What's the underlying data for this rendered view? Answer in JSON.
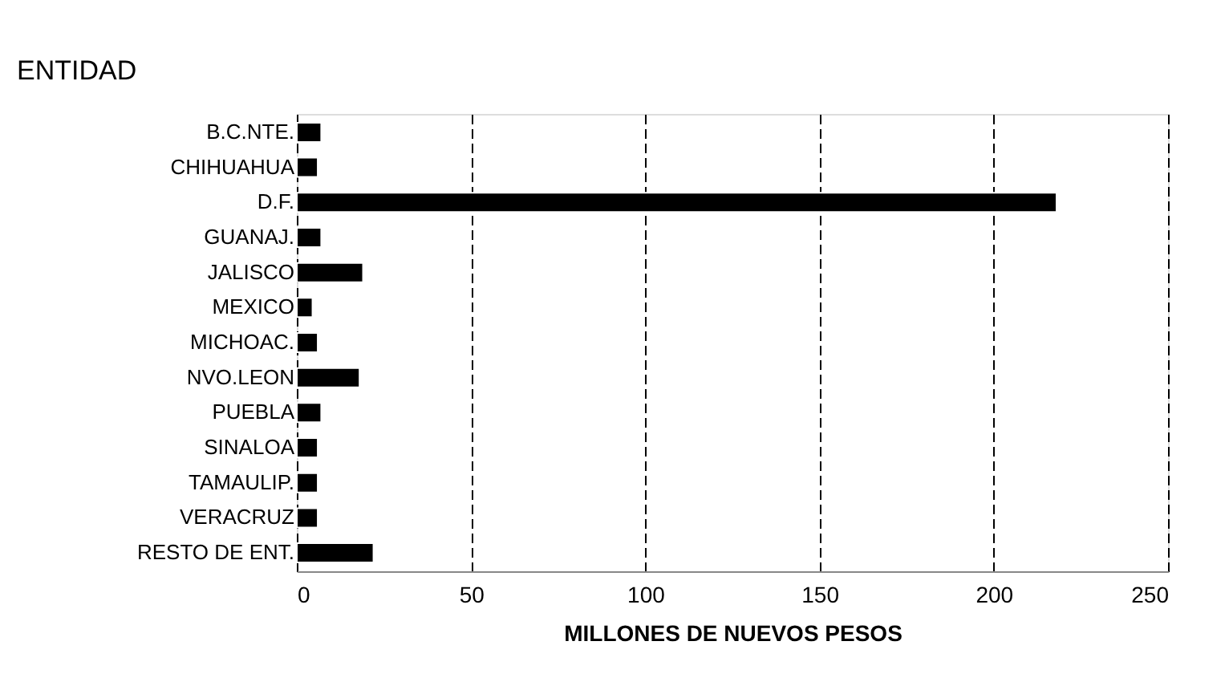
{
  "chart_data": {
    "type": "bar",
    "orientation": "horizontal",
    "ylabel": "ENTIDAD",
    "xlabel": "MILLONES DE NUEVOS PESOS",
    "categories": [
      "B.C.NTE.",
      "CHIHUAHUA",
      "D.F.",
      "GUANAJ.",
      "JALISCO",
      "MEXICO",
      "MICHOAC.",
      "NVO.LEON",
      "PUEBLA",
      "SINALOA",
      "TAMAULIP.",
      "VERACRUZ",
      "RESTO DE ENT."
    ],
    "values": [
      7,
      6,
      218,
      7,
      19,
      4.5,
      6,
      18,
      7,
      6,
      6,
      6,
      22
    ],
    "color": "#000000",
    "xlim": [
      0,
      250
    ],
    "xticks": [
      0,
      50,
      100,
      150,
      200,
      250
    ],
    "grid": "x"
  }
}
